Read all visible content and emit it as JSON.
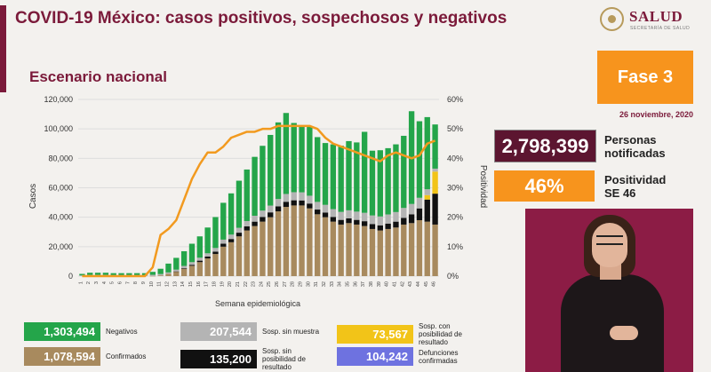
{
  "header": {
    "title": "COVID-19 México: casos positivos, sospechosos y negativos",
    "subtitle": "Escenario nacional",
    "logo_text": "SALUD",
    "logo_subtext": "SECRETARÍA DE SALUD"
  },
  "side": {
    "phase": "Fase 3",
    "date": "26 noviembre, 2020",
    "notified_value": "2,798,399",
    "notified_label_1": "Personas",
    "notified_label_2": "notificadas",
    "positivity_value": "46%",
    "positivity_label_1": "Positividad",
    "positivity_label_2": "SE 46"
  },
  "legend": [
    {
      "value": "1,303,494",
      "label": "Negativos",
      "color": "#24a54a"
    },
    {
      "value": "207,544",
      "label": "Sosp. sin muestra",
      "color": "#b4b4b4"
    },
    {
      "value": "73,567",
      "label": "Sosp. con posibilidad de resultado",
      "color": "#f2c418"
    },
    {
      "value": "1,078,594",
      "label": "Confirmados",
      "color": "#a88a5e"
    },
    {
      "value": "135,200",
      "label": "Sosp. sin posibilidad de resultado",
      "color": "#111111"
    },
    {
      "value": "104,242",
      "label": "Defunciones confirmadas",
      "color": "#6e72e0"
    }
  ],
  "chart_data": {
    "type": "bar",
    "stacked": true,
    "xlabel": "Semana epidemiológica",
    "ylabel": "Casos",
    "y2label": "Positividad",
    "ylim": [
      0,
      120000
    ],
    "y_ticks": [
      "0",
      "20,000",
      "40,000",
      "60,000",
      "80,000",
      "100,000",
      "120,000"
    ],
    "y2lim": [
      0,
      60
    ],
    "y2_ticks": [
      "0%",
      "10%",
      "20%",
      "30%",
      "40%",
      "50%",
      "60%"
    ],
    "categories": [
      "1",
      "2",
      "3",
      "4",
      "5",
      "6",
      "7",
      "8",
      "9",
      "10",
      "11",
      "12",
      "13",
      "14",
      "15",
      "16",
      "17",
      "18",
      "19",
      "20",
      "21",
      "22",
      "23",
      "24",
      "25",
      "26",
      "27",
      "28",
      "29",
      "30",
      "31",
      "32",
      "33",
      "34",
      "35",
      "36",
      "37",
      "38",
      "39",
      "40",
      "41",
      "42",
      "43",
      "44",
      "45",
      "46"
    ],
    "series": [
      {
        "name": "Confirmados",
        "color": "#a88a5e",
        "values": [
          0,
          0,
          0,
          0,
          0,
          0,
          0,
          0,
          0,
          100,
          500,
          1500,
          3000,
          5000,
          7000,
          9500,
          12000,
          15000,
          20000,
          23000,
          27000,
          31000,
          34000,
          37000,
          40000,
          44000,
          47000,
          48000,
          48000,
          46000,
          42000,
          40000,
          37000,
          35000,
          36000,
          35000,
          34000,
          32000,
          31000,
          32000,
          33000,
          35000,
          36000,
          38000,
          37000,
          35000
        ]
      },
      {
        "name": "Sosp. sin posibilidad de resultado",
        "color": "#111111",
        "values": [
          0,
          0,
          0,
          0,
          0,
          0,
          0,
          0,
          0,
          0,
          0,
          0,
          200,
          400,
          700,
          1000,
          1300,
          1600,
          2000,
          2200,
          2500,
          2800,
          3000,
          3200,
          3300,
          3400,
          3500,
          3500,
          3400,
          3300,
          3200,
          3200,
          3200,
          3200,
          3200,
          3200,
          3300,
          3400,
          3500,
          3700,
          4000,
          4500,
          6000,
          8000,
          15000,
          21000
        ]
      },
      {
        "name": "Sosp. con posibilidad de resultado",
        "color": "#f2c418",
        "values": [
          0,
          0,
          0,
          0,
          0,
          0,
          0,
          0,
          0,
          0,
          0,
          0,
          0,
          0,
          0,
          0,
          0,
          0,
          0,
          0,
          0,
          0,
          0,
          0,
          0,
          0,
          0,
          0,
          0,
          0,
          0,
          0,
          0,
          0,
          0,
          0,
          0,
          0,
          0,
          0,
          0,
          0,
          0,
          0,
          3000,
          15000
        ]
      },
      {
        "name": "Sosp. sin muestra",
        "color": "#b4b4b4",
        "values": [
          500,
          800,
          800,
          800,
          700,
          700,
          700,
          700,
          700,
          800,
          900,
          1000,
          1200,
          1500,
          1800,
          2000,
          2200,
          2500,
          2800,
          3000,
          3300,
          3600,
          4000,
          4300,
          4600,
          5000,
          5300,
          5500,
          5500,
          5300,
          5200,
          5200,
          5300,
          5400,
          5500,
          5600,
          5700,
          5800,
          6000,
          6200,
          6500,
          6800,
          7000,
          7200,
          4000,
          2000
        ]
      },
      {
        "name": "Negativos",
        "color": "#24a54a",
        "values": [
          1000,
          1500,
          1500,
          1500,
          1300,
          1300,
          1300,
          1300,
          1300,
          2000,
          3600,
          6000,
          8000,
          10000,
          12500,
          14500,
          17500,
          21000,
          25000,
          28000,
          32000,
          35000,
          40000,
          44000,
          48000,
          52000,
          55000,
          47000,
          45000,
          47000,
          44000,
          42000,
          44000,
          45000,
          47000,
          47000,
          55000,
          44000,
          45000,
          45000,
          46000,
          49000,
          63000,
          52000,
          49000,
          30000
        ]
      }
    ],
    "positividad_pct": [
      0,
      0,
      0,
      0,
      0,
      0,
      0,
      0,
      0,
      3,
      14,
      16,
      19,
      26,
      33,
      38,
      42,
      42,
      44,
      47,
      48,
      49,
      49,
      50,
      50,
      51,
      51,
      51,
      51,
      51,
      50,
      47,
      45,
      44,
      43,
      42,
      41,
      40,
      39,
      41,
      42,
      41,
      40,
      41,
      45,
      46
    ]
  }
}
